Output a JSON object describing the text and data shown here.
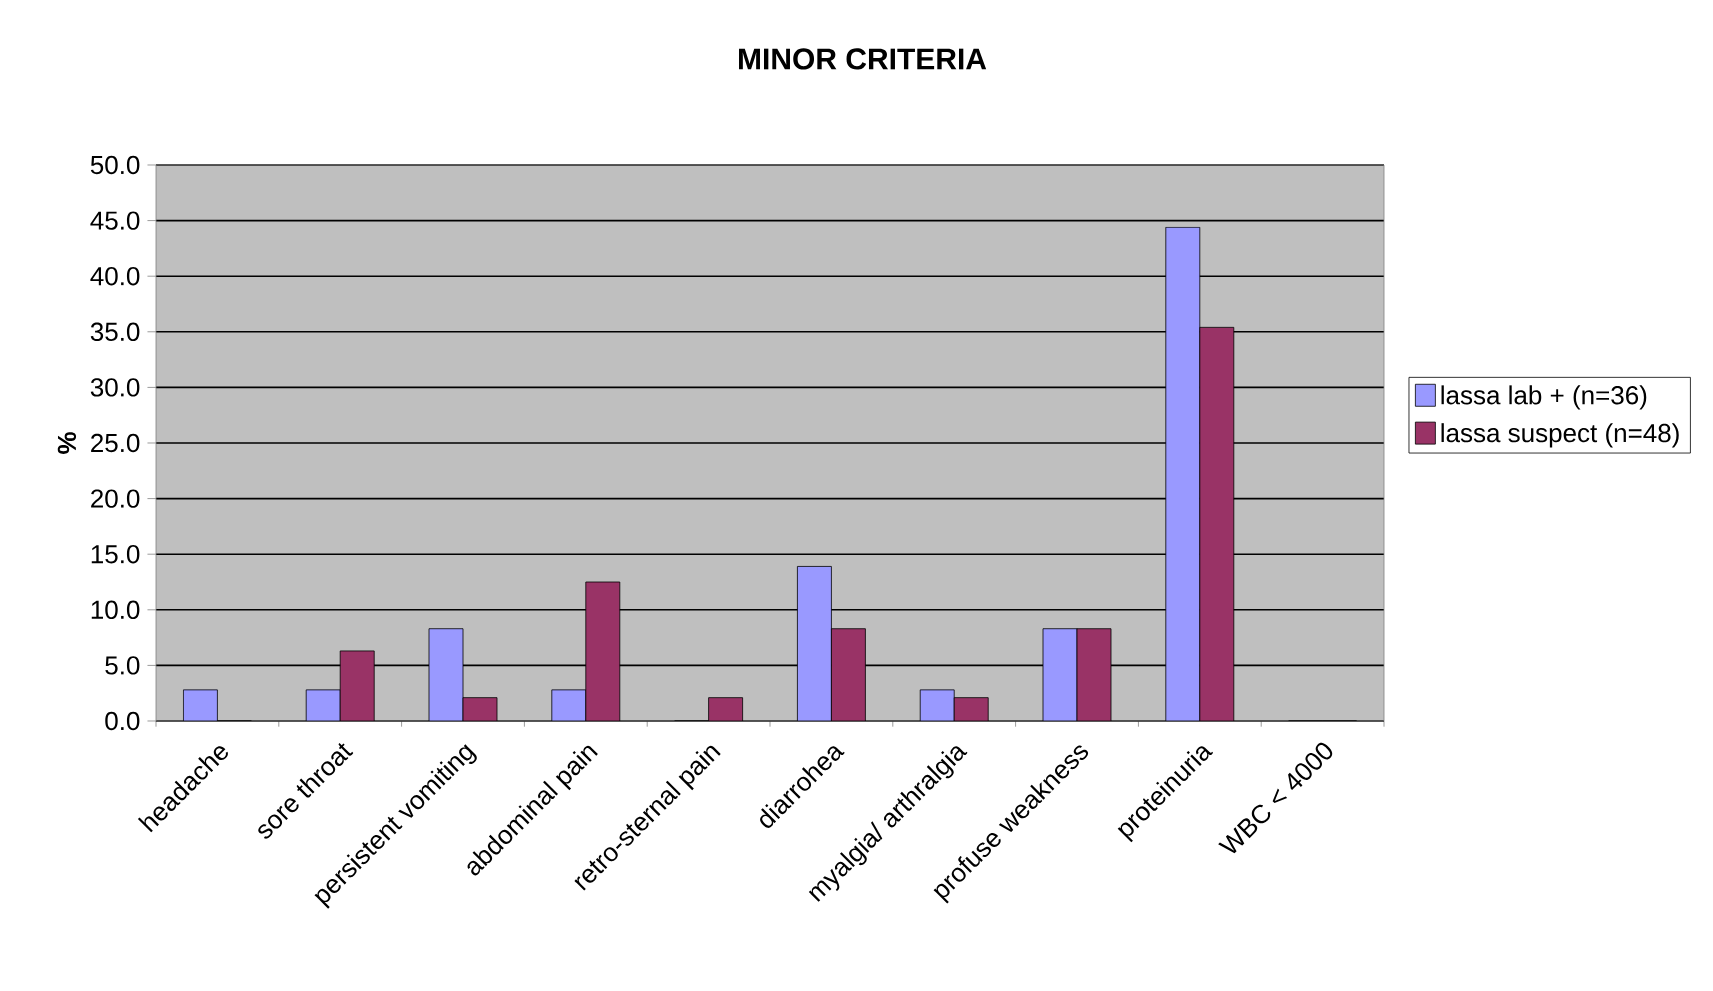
{
  "chart_data": {
    "type": "bar",
    "title": "MINOR CRITERIA",
    "ylabel": "%",
    "categories": [
      "headache",
      "sore throat",
      "persistent vomiting",
      "abdominal pain",
      "retro-sternal pain",
      "diarrohea",
      "myalgia/ arthralgia",
      "profuse weakness",
      "proteinuria",
      "WBC < 4000"
    ],
    "series": [
      {
        "name": "lassa lab + (n=36)",
        "color": "#9999ff",
        "values": [
          2.8,
          2.8,
          8.3,
          2.8,
          0,
          13.9,
          2.8,
          8.3,
          44.4,
          0
        ]
      },
      {
        "name": "lassa suspect (n=48)",
        "color": "#993366",
        "values": [
          0,
          6.3,
          2.1,
          12.5,
          2.1,
          8.3,
          2.1,
          8.3,
          35.4,
          0
        ]
      }
    ],
    "ylim": [
      0,
      50
    ],
    "yticks": [
      {
        "value": 0,
        "label": "0.0"
      },
      {
        "value": 5,
        "label": "5.0"
      },
      {
        "value": 10,
        "label": "10.0"
      },
      {
        "value": 15,
        "label": "15.0"
      },
      {
        "value": 20,
        "label": "20.0"
      },
      {
        "value": 25,
        "label": "25.0"
      },
      {
        "value": 30,
        "label": "30.0"
      },
      {
        "value": 35,
        "label": "35.0"
      },
      {
        "value": 40,
        "label": "40.0"
      },
      {
        "value": 45,
        "label": "45.0"
      },
      {
        "value": 50,
        "label": "50.0"
      }
    ],
    "grid": "y",
    "legend": "right"
  }
}
